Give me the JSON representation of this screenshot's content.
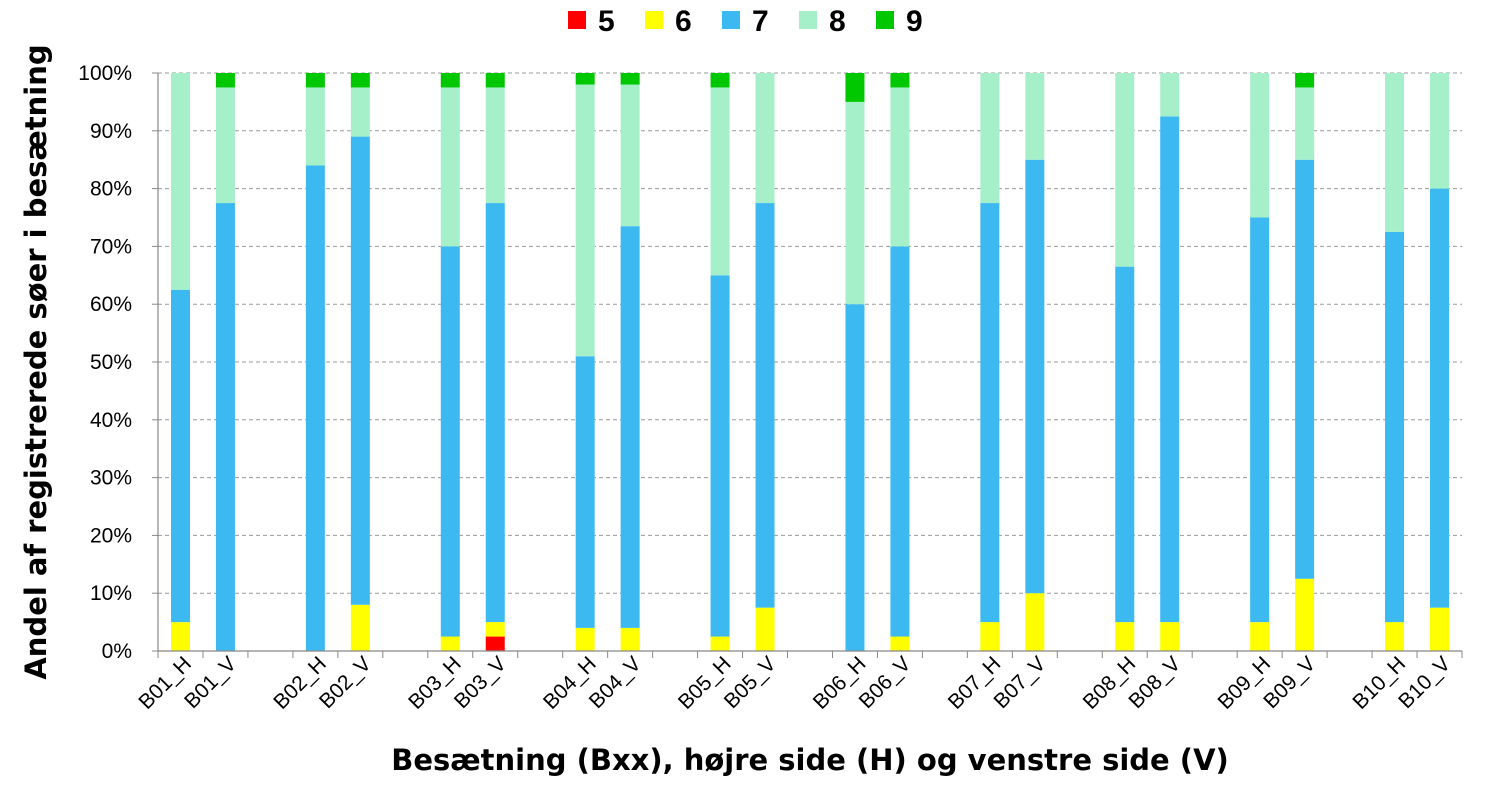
{
  "chart_data": {
    "type": "bar",
    "stacked": true,
    "title": "",
    "xlabel": "Besætning (Bxx), højre side (H) og venstre side (V)",
    "ylabel": "Andel af  registrerede søer i besætning",
    "ylim": [
      0,
      100
    ],
    "yticks": [
      "0%",
      "10%",
      "20%",
      "30%",
      "40%",
      "50%",
      "60%",
      "70%",
      "80%",
      "90%",
      "100%"
    ],
    "grid": true,
    "legend_position": "top",
    "categories": [
      "B01_H",
      "B01_V",
      "",
      "B02_H",
      "B02_V",
      "",
      "B03_H",
      "B03_V",
      "",
      "B04_H",
      "B04_V",
      "",
      "B05_H",
      "B05_V",
      "",
      "B06_H",
      "B06_V",
      "",
      "B07_H",
      "B07_V",
      "",
      "B08_H",
      "B08_V",
      "",
      "B09_H",
      "B09_V",
      "",
      "B10_H",
      "B10_V"
    ],
    "series": [
      {
        "name": "5",
        "color": "#ff0000",
        "values": [
          0,
          0,
          0,
          0,
          0,
          0,
          0,
          2.5,
          0,
          0,
          0,
          0,
          0,
          0,
          0,
          0,
          0,
          0,
          0,
          0,
          0,
          0,
          0,
          0,
          0,
          0,
          0,
          0,
          0
        ]
      },
      {
        "name": "6",
        "color": "#ffff00",
        "values": [
          5,
          0,
          0,
          0,
          8,
          0,
          2.5,
          2.5,
          0,
          4,
          4,
          0,
          2.5,
          7.5,
          0,
          0,
          2.5,
          0,
          5,
          10,
          0,
          5,
          5,
          0,
          5,
          12.5,
          0,
          5,
          7.5
        ]
      },
      {
        "name": "7",
        "color": "#3db9f2",
        "values": [
          57.5,
          77.5,
          0,
          84,
          81,
          0,
          67.5,
          72.5,
          0,
          47,
          69.5,
          0,
          62.5,
          70,
          0,
          60,
          67.5,
          0,
          72.5,
          75,
          0,
          61.5,
          87.5,
          0,
          70,
          72.5,
          0,
          67.5,
          72.5
        ]
      },
      {
        "name": "8",
        "color": "#a6f0c9",
        "values": [
          37.5,
          20,
          0,
          13.5,
          8.5,
          0,
          27.5,
          20,
          0,
          47,
          24.5,
          0,
          32.5,
          22.5,
          0,
          35,
          27.5,
          0,
          22.5,
          15,
          0,
          33.5,
          7.5,
          0,
          25,
          12.5,
          0,
          27.5,
          20
        ]
      },
      {
        "name": "9",
        "color": "#00c800",
        "values": [
          0,
          2.5,
          0,
          2.5,
          2.5,
          0,
          2.5,
          2.5,
          0,
          2,
          2,
          0,
          2.5,
          0,
          0,
          5,
          2.5,
          0,
          0,
          0,
          0,
          0,
          0,
          0,
          0,
          2.5,
          0,
          0,
          0
        ]
      }
    ]
  }
}
